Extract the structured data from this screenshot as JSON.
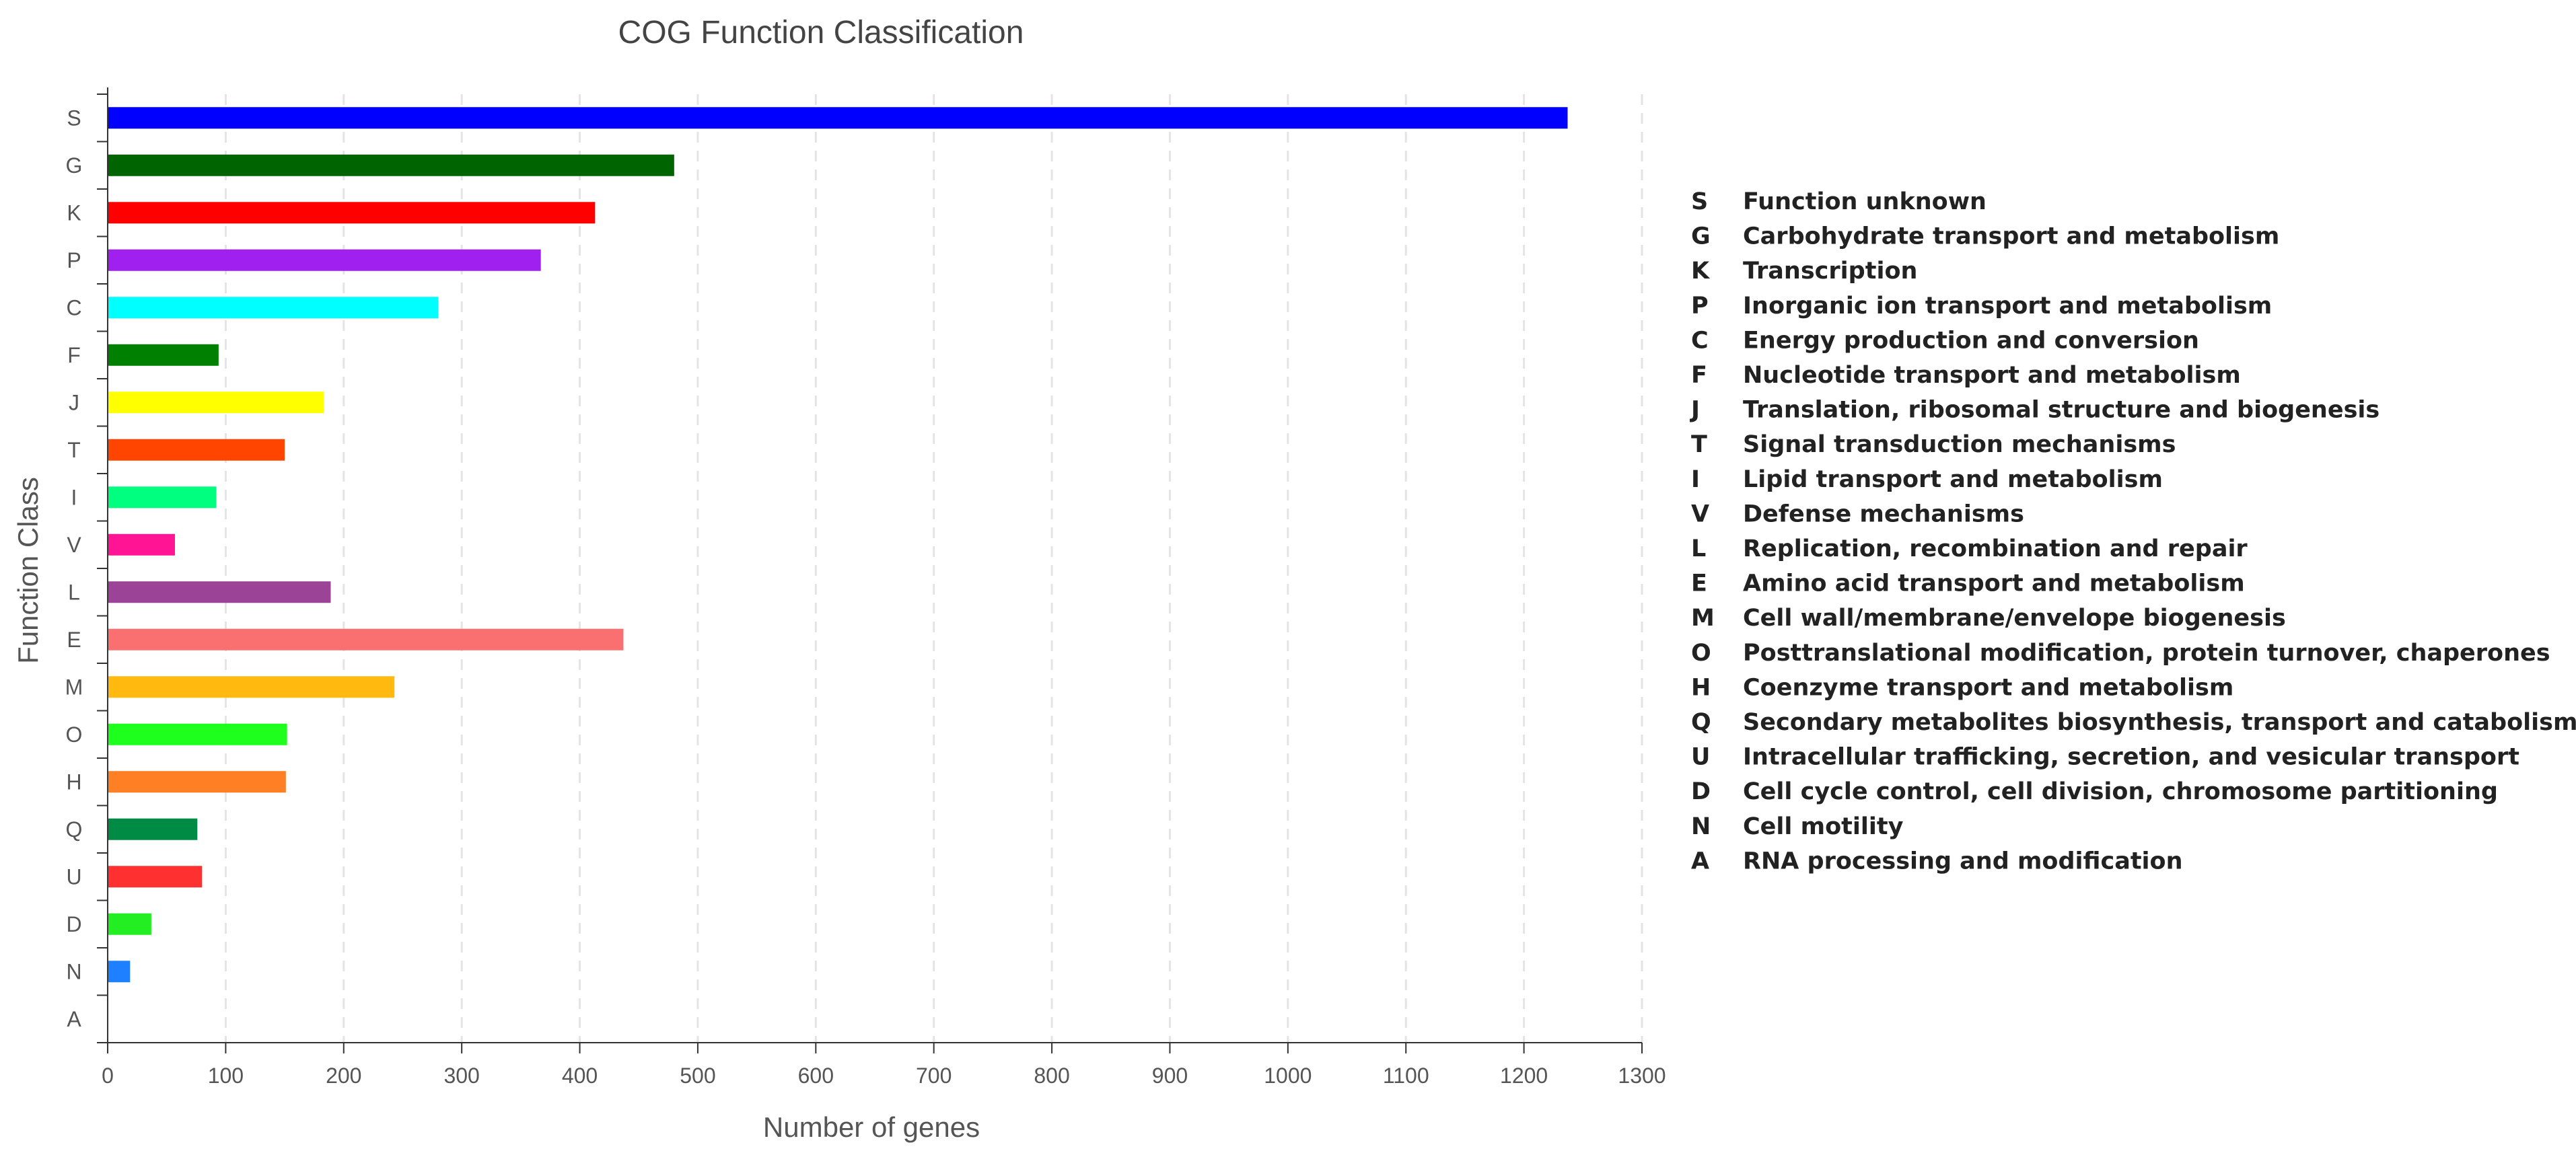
{
  "chart_data": {
    "type": "bar",
    "orientation": "horizontal",
    "title": "COG Function Classification",
    "xlabel": "Number of genes",
    "ylabel": "Function Class",
    "xlim": [
      0,
      1300
    ],
    "x_ticks": [
      "0",
      "100",
      "200",
      "300",
      "400",
      "500",
      "600",
      "700",
      "800",
      "900",
      "1000",
      "1100",
      "1200",
      "1300"
    ],
    "grid": "vertical dashed",
    "legend_position": "right",
    "categories": [
      "S",
      "G",
      "K",
      "P",
      "C",
      "F",
      "J",
      "T",
      "I",
      "V",
      "L",
      "E",
      "M",
      "O",
      "H",
      "Q",
      "U",
      "D",
      "N",
      "A"
    ],
    "values": [
      1237,
      480,
      413,
      367,
      280,
      94,
      183,
      150,
      92,
      57,
      189,
      437,
      243,
      152,
      151,
      76,
      80,
      37,
      19,
      0
    ],
    "colors": [
      "#0000ff",
      "#006400",
      "#ff0000",
      "#a020f0",
      "#00ffff",
      "#008000",
      "#ffff00",
      "#ff4500",
      "#00ff7f",
      "#ff1493",
      "#9b4497",
      "#fa7070",
      "#ffb90f",
      "#1eff1e",
      "#ff7f24",
      "#008b45",
      "#ff3030",
      "#22ee22",
      "#1e7fff",
      "#000000"
    ],
    "legend": [
      {
        "code": "S",
        "label": "Function unknown"
      },
      {
        "code": "G",
        "label": "Carbohydrate transport and metabolism"
      },
      {
        "code": "K",
        "label": "Transcription"
      },
      {
        "code": "P",
        "label": "Inorganic ion transport and metabolism"
      },
      {
        "code": "C",
        "label": "Energy production and conversion"
      },
      {
        "code": "F",
        "label": "Nucleotide transport and metabolism"
      },
      {
        "code": "J",
        "label": "Translation, ribosomal structure and biogenesis"
      },
      {
        "code": "T",
        "label": "Signal transduction mechanisms"
      },
      {
        "code": "I",
        "label": "Lipid transport and metabolism"
      },
      {
        "code": "V",
        "label": "Defense mechanisms"
      },
      {
        "code": "L",
        "label": "Replication, recombination and repair"
      },
      {
        "code": "E",
        "label": "Amino acid transport and metabolism"
      },
      {
        "code": "M",
        "label": "Cell wall/membrane/envelope biogenesis"
      },
      {
        "code": "O",
        "label": "Posttranslational modification, protein turnover, chaperones"
      },
      {
        "code": "H",
        "label": "Coenzyme transport and metabolism"
      },
      {
        "code": "Q",
        "label": "Secondary metabolites biosynthesis, transport and catabolism"
      },
      {
        "code": "U",
        "label": "Intracellular trafficking, secretion, and vesicular transport"
      },
      {
        "code": "D",
        "label": "Cell cycle control, cell division, chromosome partitioning"
      },
      {
        "code": "N",
        "label": "Cell motility"
      },
      {
        "code": "A",
        "label": "RNA processing and modification"
      }
    ]
  }
}
